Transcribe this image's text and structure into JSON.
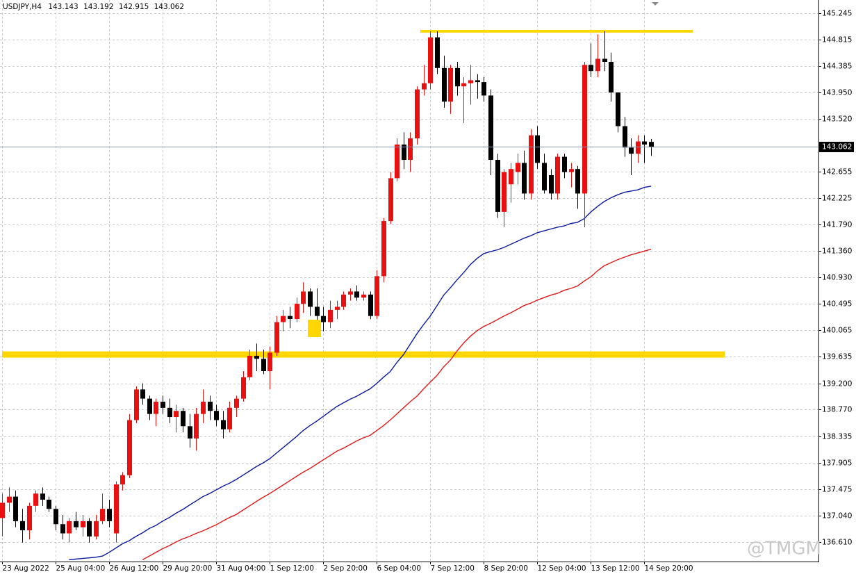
{
  "chart_data": {
    "type": "candlestick",
    "symbol": "USDJPY,H4",
    "watermark": "@TMGM",
    "up_color": "#e81010",
    "down_color": "#000000",
    "grid": true,
    "ylim": [
      136.29,
      145.46
    ],
    "yticks": [
      {
        "value": 136.61,
        "label": "136.610"
      },
      {
        "value": 137.04,
        "label": "137.040"
      },
      137.475,
      137.905,
      138.335,
      {
        "value": 138.77,
        "label": "138.770"
      },
      {
        "value": 139.2,
        "label": "139.200"
      },
      139.635,
      140.065,
      140.495,
      {
        "value": 140.93,
        "label": "140.930"
      },
      {
        "value": 141.36,
        "label": "141.360"
      },
      {
        "value": 141.79,
        "label": "141.790"
      },
      142.225,
      142.655,
      {
        "value": 143.52,
        "label": "143.520"
      },
      {
        "value": 143.95,
        "label": "143.950"
      },
      144.385,
      144.815,
      145.245
    ],
    "categories": [
      "23 Aug 2022",
      null,
      null,
      null,
      null,
      null,
      null,
      null,
      "25 Aug 04:00",
      null,
      null,
      null,
      null,
      null,
      null,
      null,
      "26 Aug 12:00",
      null,
      null,
      null,
      null,
      null,
      null,
      null,
      "29 Aug 20:00",
      null,
      null,
      null,
      null,
      null,
      null,
      null,
      "31 Aug 04:00",
      null,
      null,
      null,
      null,
      null,
      null,
      null,
      "1 Sep 12:00",
      null,
      null,
      null,
      null,
      null,
      null,
      null,
      "2 Sep 20:00",
      null,
      null,
      null,
      null,
      null,
      null,
      null,
      "6 Sep 04:00",
      null,
      null,
      null,
      null,
      null,
      null,
      null,
      "7 Sep 12:00",
      null,
      null,
      null,
      null,
      null,
      null,
      null,
      "8 Sep 20:00",
      null,
      null,
      null,
      null,
      null,
      null,
      null,
      "12 Sep 04:00",
      null,
      null,
      null,
      null,
      null,
      null,
      null,
      "13 Sep 12:00",
      null,
      null,
      null,
      null,
      null,
      null,
      null,
      "14 Sep 20:00",
      null
    ],
    "candles": [
      [
        137.0,
        137.4,
        136.7,
        137.25
      ],
      [
        137.25,
        137.5,
        137.1,
        137.35
      ],
      [
        137.35,
        137.45,
        136.85,
        136.95
      ],
      [
        136.95,
        137.15,
        136.6,
        136.8
      ],
      [
        136.8,
        137.25,
        136.65,
        137.2
      ],
      [
        137.2,
        137.45,
        137.1,
        137.4
      ],
      [
        137.4,
        137.5,
        137.2,
        137.3
      ],
      [
        137.3,
        137.35,
        137.1,
        137.15
      ],
      [
        137.15,
        137.2,
        136.8,
        136.9
      ],
      [
        136.9,
        137.05,
        136.65,
        136.75
      ],
      [
        136.75,
        137.0,
        136.6,
        136.95
      ],
      [
        136.95,
        137.1,
        136.8,
        136.85
      ],
      [
        136.85,
        137.05,
        136.7,
        136.95
      ],
      [
        136.95,
        137.0,
        136.6,
        136.7
      ],
      [
        136.7,
        137.05,
        136.65,
        136.95
      ],
      [
        136.95,
        137.4,
        136.9,
        137.15
      ],
      [
        137.15,
        137.3,
        136.85,
        136.95
      ],
      [
        136.75,
        137.6,
        136.6,
        137.55
      ],
      [
        137.55,
        137.75,
        137.45,
        137.7
      ],
      [
        137.7,
        138.7,
        137.65,
        138.6
      ],
      [
        138.6,
        139.15,
        138.55,
        139.1
      ],
      [
        139.1,
        139.2,
        138.85,
        138.95
      ],
      [
        138.95,
        139.0,
        138.6,
        138.7
      ],
      [
        138.7,
        138.95,
        138.5,
        138.9
      ],
      [
        138.9,
        139.0,
        138.7,
        138.8
      ],
      [
        138.8,
        138.95,
        138.55,
        138.65
      ],
      [
        138.65,
        138.85,
        138.4,
        138.75
      ],
      [
        138.75,
        138.8,
        138.4,
        138.5
      ],
      [
        138.5,
        138.7,
        138.15,
        138.3
      ],
      [
        138.3,
        138.8,
        138.1,
        138.7
      ],
      [
        138.7,
        139.1,
        138.55,
        138.9
      ],
      [
        138.9,
        139.0,
        138.6,
        138.75
      ],
      [
        138.75,
        138.85,
        138.5,
        138.6
      ],
      [
        138.6,
        138.75,
        138.3,
        138.45
      ],
      [
        138.45,
        138.9,
        138.4,
        138.8
      ],
      [
        138.8,
        139.0,
        138.65,
        138.95
      ],
      [
        138.95,
        139.4,
        138.9,
        139.3
      ],
      [
        139.3,
        139.75,
        139.25,
        139.65
      ],
      [
        139.65,
        139.85,
        139.4,
        139.6
      ],
      [
        139.6,
        139.75,
        139.35,
        139.4
      ],
      [
        139.4,
        139.8,
        139.1,
        139.7
      ],
      [
        139.7,
        140.3,
        139.65,
        140.2
      ],
      [
        140.2,
        140.4,
        140.05,
        140.3
      ],
      [
        140.3,
        140.45,
        140.1,
        140.25
      ],
      [
        140.25,
        140.6,
        140.2,
        140.5
      ],
      [
        140.5,
        140.85,
        140.35,
        140.7
      ],
      [
        140.7,
        140.75,
        140.3,
        140.45
      ],
      [
        140.45,
        140.75,
        140.2,
        140.3
      ],
      [
        140.3,
        140.45,
        140.05,
        140.2
      ],
      [
        140.2,
        140.55,
        140.1,
        140.4
      ],
      [
        140.4,
        140.55,
        140.25,
        140.45
      ],
      [
        140.45,
        140.7,
        140.4,
        140.65
      ],
      [
        140.65,
        140.75,
        140.55,
        140.7
      ],
      [
        140.7,
        140.8,
        140.55,
        140.6
      ],
      [
        140.6,
        140.7,
        140.55,
        140.65
      ],
      [
        140.65,
        140.7,
        140.25,
        140.3
      ],
      [
        140.3,
        141.05,
        140.25,
        140.95
      ],
      [
        140.95,
        141.9,
        140.85,
        141.85
      ],
      [
        141.85,
        142.65,
        141.8,
        142.55
      ],
      [
        142.55,
        143.2,
        142.5,
        143.1
      ],
      [
        143.1,
        143.3,
        142.7,
        142.85
      ],
      [
        142.85,
        143.3,
        142.65,
        143.2
      ],
      [
        143.2,
        144.05,
        143.1,
        144.0
      ],
      [
        144.0,
        144.4,
        143.9,
        144.1
      ],
      [
        144.1,
        144.95,
        144.0,
        144.85
      ],
      [
        144.85,
        144.95,
        144.25,
        144.35
      ],
      [
        144.35,
        144.55,
        143.7,
        143.8
      ],
      [
        143.8,
        144.4,
        143.6,
        144.35
      ],
      [
        144.35,
        144.45,
        143.9,
        144.05
      ],
      [
        144.05,
        144.2,
        143.45,
        144.1
      ],
      [
        144.1,
        144.4,
        143.75,
        144.15
      ],
      [
        144.15,
        144.25,
        143.85,
        144.12
      ],
      [
        144.12,
        144.2,
        143.8,
        143.9
      ],
      [
        143.9,
        144.0,
        142.6,
        142.85
      ],
      [
        142.85,
        142.95,
        141.9,
        142.0
      ],
      [
        142.0,
        142.7,
        141.75,
        142.65
      ],
      [
        142.45,
        142.8,
        142.15,
        142.7
      ],
      [
        142.65,
        142.95,
        142.45,
        142.8
      ],
      [
        142.8,
        143.0,
        142.2,
        142.3
      ],
      [
        142.3,
        143.35,
        142.2,
        143.25
      ],
      [
        143.25,
        143.4,
        142.7,
        142.8
      ],
      [
        142.8,
        142.95,
        142.3,
        142.35
      ],
      [
        142.6,
        142.7,
        142.2,
        142.3
      ],
      [
        142.3,
        142.95,
        142.2,
        142.9
      ],
      [
        142.9,
        142.95,
        142.55,
        142.65
      ],
      [
        142.65,
        142.8,
        142.4,
        142.7
      ],
      [
        142.7,
        142.75,
        142.05,
        142.3
      ],
      [
        142.3,
        144.45,
        141.75,
        144.4
      ],
      [
        144.4,
        144.75,
        144.2,
        144.3
      ],
      [
        144.3,
        144.9,
        144.2,
        144.5
      ],
      [
        144.5,
        144.95,
        144.3,
        144.45
      ],
      [
        144.45,
        144.6,
        143.8,
        143.95
      ],
      [
        143.95,
        143.95,
        143.3,
        143.4
      ],
      [
        143.4,
        143.55,
        142.9,
        143.05
      ],
      [
        143.05,
        143.2,
        142.6,
        142.95
      ],
      [
        142.95,
        143.25,
        142.8,
        143.15
      ],
      [
        143.15,
        143.25,
        142.8,
        143.1
      ],
      [
        143.143,
        143.192,
        142.915,
        143.062
      ]
    ],
    "ma": [
      {
        "color": "#0a1aa0",
        "values": [
          null,
          null,
          null,
          null,
          null,
          null,
          null,
          null,
          null,
          null,
          136.32,
          136.33,
          136.34,
          136.35,
          136.36,
          136.38,
          136.44,
          136.51,
          136.58,
          136.63,
          136.7,
          136.76,
          136.83,
          136.88,
          136.95,
          137.01,
          137.08,
          137.14,
          137.21,
          137.28,
          137.35,
          137.4,
          137.46,
          137.52,
          137.57,
          137.63,
          137.7,
          137.77,
          137.84,
          137.9,
          137.97,
          138.06,
          138.15,
          138.24,
          138.33,
          138.43,
          138.51,
          138.58,
          138.66,
          138.74,
          138.82,
          138.88,
          138.94,
          138.99,
          139.05,
          139.11,
          139.2,
          139.3,
          139.39,
          139.54,
          139.67,
          139.84,
          140.01,
          140.16,
          140.3,
          140.47,
          140.64,
          140.76,
          140.89,
          141.01,
          141.14,
          141.24,
          141.32,
          141.35,
          141.38,
          141.42,
          141.47,
          141.52,
          141.57,
          141.61,
          141.66,
          141.69,
          141.72,
          141.75,
          141.77,
          141.81,
          141.83,
          141.89,
          142.0,
          142.09,
          142.17,
          142.23,
          142.28,
          142.32,
          142.34,
          142.36,
          142.4,
          142.42
        ]
      },
      {
        "color": "#e01818",
        "values": [
          null,
          null,
          null,
          null,
          null,
          null,
          null,
          null,
          null,
          null,
          null,
          null,
          null,
          null,
          null,
          null,
          null,
          null,
          null,
          null,
          null,
          136.32,
          136.38,
          136.44,
          136.5,
          136.55,
          136.61,
          136.66,
          136.7,
          136.75,
          136.79,
          136.84,
          136.89,
          136.95,
          137.01,
          137.06,
          137.13,
          137.2,
          137.27,
          137.34,
          137.4,
          137.47,
          137.54,
          137.61,
          137.68,
          137.75,
          137.81,
          137.88,
          137.95,
          138.02,
          138.09,
          138.14,
          138.2,
          138.26,
          138.31,
          138.35,
          138.43,
          138.51,
          138.6,
          138.7,
          138.8,
          138.9,
          138.99,
          139.11,
          139.22,
          139.33,
          139.47,
          139.58,
          139.73,
          139.86,
          139.97,
          140.06,
          140.13,
          140.18,
          140.24,
          140.3,
          140.35,
          140.41,
          140.47,
          140.51,
          140.56,
          140.6,
          140.64,
          140.67,
          140.72,
          140.75,
          140.79,
          140.87,
          140.94,
          141.04,
          141.12,
          141.17,
          141.22,
          141.26,
          141.3,
          141.33,
          141.36,
          141.39
        ]
      }
    ],
    "levels": [
      {
        "value": 144.95,
        "color": "#ffd700"
      },
      {
        "value": 139.67,
        "color": "#ffd700"
      }
    ],
    "price_line_color": "#8797b0"
  }
}
